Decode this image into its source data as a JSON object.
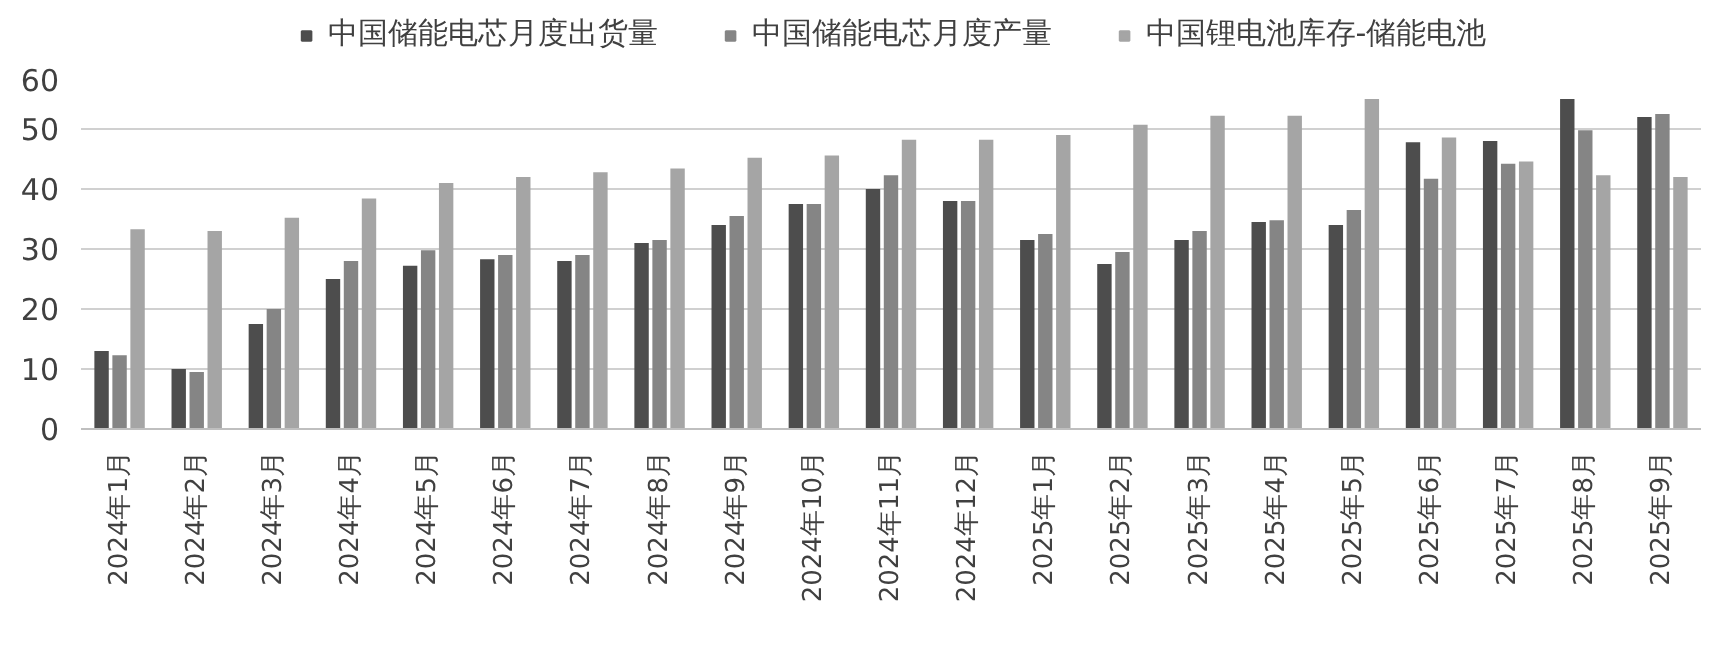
{
  "chart_data": {
    "type": "bar",
    "categories": [
      "2024年1月",
      "2024年2月",
      "2024年3月",
      "2024年4月",
      "2024年5月",
      "2024年6月",
      "2024年7月",
      "2024年8月",
      "2024年9月",
      "2024年10月",
      "2024年11月",
      "2024年12月",
      "2025年1月",
      "2025年2月",
      "2025年3月",
      "2025年4月",
      "2025年5月",
      "2025年6月",
      "2025年7月",
      "2025年8月",
      "2025年9月"
    ],
    "series": [
      {
        "name": "中国储能电芯月度出货量",
        "color": "#4d4d4d",
        "values": [
          13,
          10,
          17.5,
          25,
          27.2,
          28.3,
          28,
          31,
          34,
          37.5,
          40,
          38,
          31.5,
          27.5,
          31.5,
          34.5,
          34,
          47.8,
          48,
          55,
          52
        ]
      },
      {
        "name": "中国储能电芯月度产量",
        "color": "#858585",
        "values": [
          12.3,
          9.5,
          20,
          28,
          29.8,
          29,
          29,
          31.5,
          35.5,
          37.5,
          42.3,
          38,
          32.5,
          29.5,
          33,
          34.8,
          36.5,
          41.7,
          44.2,
          49.8,
          52.5
        ]
      },
      {
        "name": "中国锂电池库存-储能电池",
        "color": "#a5a5a5",
        "values": [
          33.3,
          33,
          35.2,
          38.4,
          41,
          42,
          42.8,
          43.4,
          45.2,
          45.6,
          48.2,
          48.2,
          49,
          50.7,
          52.2,
          52.2,
          55,
          48.6,
          44.6,
          42.3,
          42
        ]
      }
    ],
    "ylim": [
      0,
      60
    ],
    "yticks": [
      0,
      10,
      20,
      30,
      40,
      50,
      60
    ],
    "grid": "y",
    "legend": "top"
  }
}
